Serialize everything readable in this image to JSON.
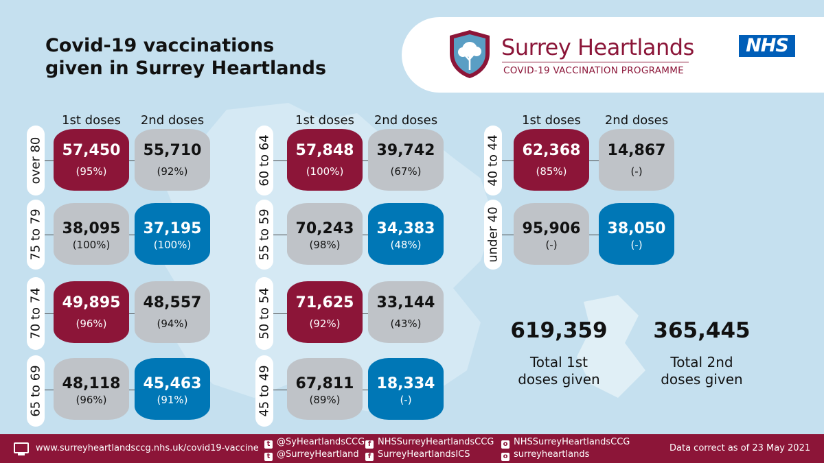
{
  "title": {
    "line1": "Covid-19 vaccinations",
    "line2": "given in Surrey Heartlands"
  },
  "brand": {
    "name": "Surrey Heartlands",
    "subtitle": "COVID-19 VACCINATION PROGRAMME",
    "nhs": "NHS"
  },
  "col_headers": {
    "first": "1st doses",
    "second": "2nd doses"
  },
  "groups": [
    {
      "age": "over 80",
      "first": "57,450",
      "first_pct": "(95%)",
      "second": "55,710",
      "second_pct": "(92%)"
    },
    {
      "age": "75 to 79",
      "first": "38,095",
      "first_pct": "(100%)",
      "second": "37,195",
      "second_pct": "(100%)"
    },
    {
      "age": "70 to 74",
      "first": "49,895",
      "first_pct": "(96%)",
      "second": "48,557",
      "second_pct": "(94%)"
    },
    {
      "age": "65 to 69",
      "first": "48,118",
      "first_pct": "(96%)",
      "second": "45,463",
      "second_pct": "(91%)"
    },
    {
      "age": "60 to 64",
      "first": "57,848",
      "first_pct": "(100%)",
      "second": "39,742",
      "second_pct": "(67%)"
    },
    {
      "age": "55 to 59",
      "first": "70,243",
      "first_pct": "(98%)",
      "second": "34,383",
      "second_pct": "(48%)"
    },
    {
      "age": "50 to 54",
      "first": "71,625",
      "first_pct": "(92%)",
      "second": "33,144",
      "second_pct": "(43%)"
    },
    {
      "age": "45 to 49",
      "first": "67,811",
      "first_pct": "(89%)",
      "second": "18,334",
      "second_pct": "(-)"
    },
    {
      "age": "40 to 44",
      "first": "62,368",
      "first_pct": "(85%)",
      "second": "14,867",
      "second_pct": "(-)"
    },
    {
      "age": "under 40",
      "first": "95,906",
      "first_pct": "(-)",
      "second": "38,050",
      "second_pct": "(-)"
    }
  ],
  "totals": {
    "first": {
      "value": "619,359",
      "label_line1": "Total 1st",
      "label_line2": "doses given"
    },
    "second": {
      "value": "365,445",
      "label_line1": "Total 2nd",
      "label_line2": "doses given"
    }
  },
  "footer": {
    "website": "www.surreyheartlandsccg.nhs.uk/covid19-vaccine",
    "twitter1": "@SyHeartlandsCCG",
    "twitter2": "@SurreyHeartland",
    "facebook1": "NHSSurreyHeartlandsCCG",
    "facebook2": "SurreyHeartlandsICS",
    "instagram1": "NHSSurreyHeartlandsCCG",
    "instagram2": "surreyheartlands",
    "date_note": "Data correct as of 23 May 2021"
  },
  "colors": {
    "maroon": "#8c1538",
    "grey": "#bfc3c8",
    "blue": "#0077b6",
    "background": "#c5e0ef",
    "nhs_blue": "#005eb8"
  }
}
